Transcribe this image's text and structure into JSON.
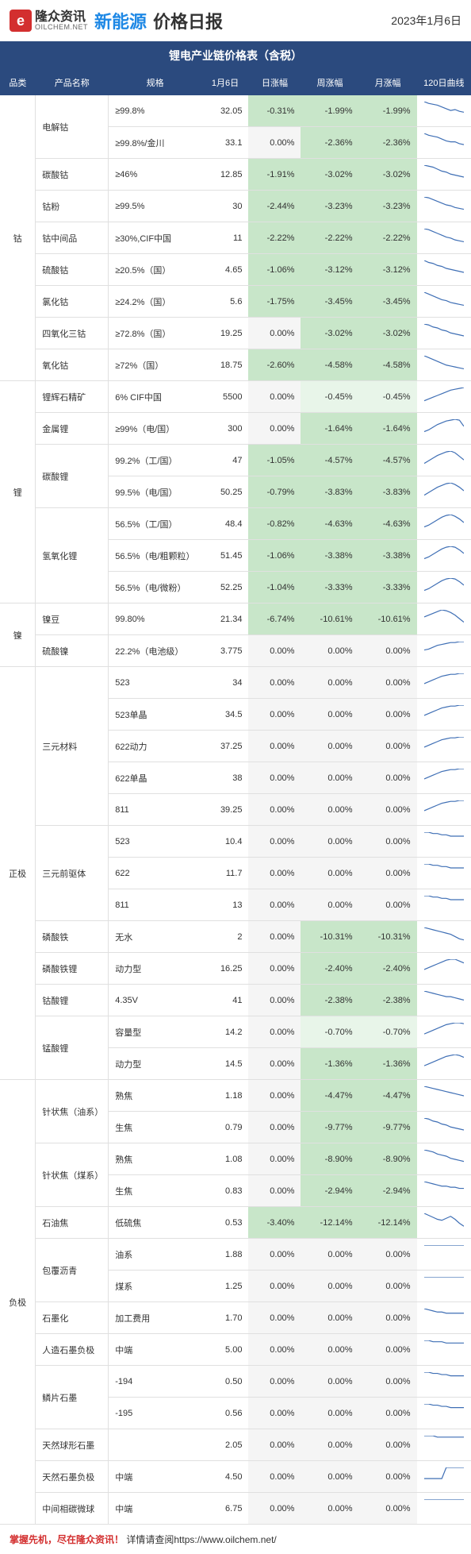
{
  "header": {
    "logo_cn": "隆众资讯",
    "logo_en": "OILCHEM.NET",
    "logo_letter": "e",
    "title_new": "新能源",
    "title_rest": "价格日报",
    "date": "2023年1月6日"
  },
  "table_title": "锂电产业链价格表（含税）",
  "columns": [
    "品类",
    "产品名称",
    "规格",
    "1月6日",
    "日涨幅",
    "周涨幅",
    "月涨幅",
    "120日曲线"
  ],
  "col_widths": [
    "38px",
    "78px",
    "100px",
    "50px",
    "56px",
    "62px",
    "62px",
    "56px"
  ],
  "colors": {
    "header_bg": "#2b4a7e",
    "green": "#c8e6c9",
    "green_light": "#e8f5e9",
    "gray": "#f5f5f5",
    "accent": "#d32f2f",
    "blue": "#1e88e5",
    "spark": "#3f6fb5"
  },
  "rows": [
    {
      "cat": "钴",
      "cat_span": 9,
      "pname": "电解钴",
      "pname_span": 2,
      "spec": "≥99.8%",
      "price": "32.05",
      "d": "-0.31%",
      "w": "-1.99%",
      "m": "-1.99%",
      "dcls": "green",
      "wcls": "green",
      "mcls": "green",
      "spark": [
        18,
        16,
        15,
        14,
        12,
        10,
        8,
        9,
        7,
        6
      ]
    },
    {
      "spec": "≥99.8%/金川",
      "price": "33.1",
      "d": "0.00%",
      "w": "-2.36%",
      "m": "-2.36%",
      "dcls": "gray",
      "wcls": "green",
      "mcls": "green",
      "spark": [
        17,
        15,
        14,
        13,
        11,
        9,
        8,
        8,
        6,
        5
      ]
    },
    {
      "pname": "碳酸钴",
      "spec": "≥46%",
      "price": "12.85",
      "d": "-1.91%",
      "w": "-3.02%",
      "m": "-3.02%",
      "dcls": "green",
      "wcls": "green",
      "mcls": "green",
      "spark": [
        16,
        15,
        14,
        12,
        10,
        9,
        7,
        6,
        5,
        4
      ]
    },
    {
      "pname": "钴粉",
      "spec": "≥99.5%",
      "price": "30",
      "d": "-2.44%",
      "w": "-3.23%",
      "m": "-3.23%",
      "dcls": "green",
      "wcls": "green",
      "mcls": "green",
      "spark": [
        18,
        17,
        15,
        13,
        11,
        9,
        8,
        6,
        5,
        4
      ]
    },
    {
      "pname": "钴中间品",
      "spec": "≥30%,CIF中国",
      "price": "11",
      "d": "-2.22%",
      "w": "-2.22%",
      "m": "-2.22%",
      "dcls": "green",
      "wcls": "green",
      "mcls": "green",
      "spark": [
        17,
        16,
        14,
        12,
        10,
        8,
        7,
        5,
        4,
        3
      ]
    },
    {
      "pname": "硫酸钴",
      "spec": "≥20.5%（国）",
      "price": "4.65",
      "d": "-1.06%",
      "w": "-3.12%",
      "m": "-3.12%",
      "dcls": "green",
      "wcls": "green",
      "mcls": "green",
      "spark": [
        16,
        14,
        13,
        11,
        10,
        8,
        7,
        6,
        5,
        4
      ]
    },
    {
      "pname": "氯化钴",
      "spec": "≥24.2%（国）",
      "price": "5.6",
      "d": "-1.75%",
      "w": "-3.45%",
      "m": "-3.45%",
      "dcls": "green",
      "wcls": "green",
      "mcls": "green",
      "spark": [
        17,
        15,
        13,
        11,
        9,
        8,
        6,
        5,
        4,
        3
      ]
    },
    {
      "pname": "四氧化三钴",
      "spec": "≥72.8%（国）",
      "price": "19.25",
      "d": "0.00%",
      "w": "-3.02%",
      "m": "-3.02%",
      "dcls": "gray",
      "wcls": "green",
      "mcls": "green",
      "spark": [
        16,
        15,
        13,
        12,
        10,
        9,
        7,
        6,
        5,
        4
      ]
    },
    {
      "pname": "氧化钴",
      "spec": "≥72%（国）",
      "price": "18.75",
      "d": "-2.60%",
      "w": "-4.58%",
      "m": "-4.58%",
      "dcls": "green",
      "wcls": "green",
      "mcls": "green",
      "spark": [
        17,
        15,
        13,
        11,
        9,
        7,
        6,
        5,
        4,
        3
      ]
    },
    {
      "cat": "锂",
      "cat_span": 7,
      "pname": "锂辉石精矿",
      "spec": "6% CIF中国",
      "price": "5500",
      "d": "0.00%",
      "w": "-0.45%",
      "m": "-0.45%",
      "dcls": "gray",
      "wcls": "green-light",
      "mcls": "green-light",
      "spark": [
        3,
        5,
        7,
        9,
        11,
        13,
        15,
        16,
        17,
        18
      ]
    },
    {
      "pname": "金属锂",
      "spec": "≥99%（电/国）",
      "price": "300",
      "d": "0.00%",
      "w": "-1.64%",
      "m": "-1.64%",
      "dcls": "gray",
      "wcls": "green",
      "mcls": "green",
      "spark": [
        4,
        6,
        9,
        12,
        14,
        16,
        17,
        18,
        17,
        10
      ]
    },
    {
      "pname": "碳酸锂",
      "pname_span": 2,
      "spec": "99.2%（工/国）",
      "price": "47",
      "d": "-1.05%",
      "w": "-4.57%",
      "m": "-4.57%",
      "dcls": "green",
      "wcls": "green",
      "mcls": "green",
      "spark": [
        4,
        7,
        10,
        13,
        15,
        17,
        18,
        16,
        12,
        8
      ]
    },
    {
      "spec": "99.5%（电/国）",
      "price": "50.25",
      "d": "-0.79%",
      "w": "-3.83%",
      "m": "-3.83%",
      "dcls": "green",
      "wcls": "green",
      "mcls": "green",
      "spark": [
        4,
        7,
        10,
        13,
        15,
        17,
        18,
        16,
        13,
        9
      ]
    },
    {
      "pname": "氢氧化锂",
      "pname_span": 3,
      "spec": "56.5%（工/国）",
      "price": "48.4",
      "d": "-0.82%",
      "w": "-4.63%",
      "m": "-4.63%",
      "dcls": "green",
      "wcls": "green",
      "mcls": "green",
      "spark": [
        4,
        6,
        9,
        12,
        15,
        17,
        18,
        16,
        13,
        9
      ]
    },
    {
      "spec": "56.5%（电/粗颗粒）",
      "price": "51.45",
      "d": "-1.06%",
      "w": "-3.38%",
      "m": "-3.38%",
      "dcls": "green",
      "wcls": "green",
      "mcls": "green",
      "spark": [
        4,
        6,
        9,
        12,
        15,
        17,
        18,
        17,
        14,
        10
      ]
    },
    {
      "spec": "56.5%（电/微粉）",
      "price": "52.25",
      "d": "-1.04%",
      "w": "-3.33%",
      "m": "-3.33%",
      "dcls": "green",
      "wcls": "green",
      "mcls": "green",
      "spark": [
        4,
        6,
        9,
        12,
        15,
        17,
        18,
        17,
        14,
        10
      ]
    },
    {
      "cat": "镍",
      "cat_span": 2,
      "pname": "镍豆",
      "spec": "99.80%",
      "price": "21.34",
      "d": "-6.74%",
      "w": "-10.61%",
      "m": "-10.61%",
      "dcls": "green",
      "wcls": "green",
      "mcls": "green",
      "spark": [
        10,
        12,
        14,
        16,
        18,
        17,
        15,
        12,
        8,
        4
      ]
    },
    {
      "pname": "硫酸镍",
      "spec": "22.2%（电池级）",
      "price": "3.775",
      "d": "0.00%",
      "w": "0.00%",
      "m": "0.00%",
      "dcls": "gray",
      "wcls": "gray",
      "mcls": "gray",
      "spark": [
        8,
        9,
        11,
        13,
        14,
        15,
        16,
        16,
        17,
        17
      ]
    },
    {
      "cat": "正极",
      "cat_span": 13,
      "pname": "三元材料",
      "pname_span": 5,
      "spec": "523",
      "price": "34",
      "d": "0.00%",
      "w": "0.00%",
      "m": "0.00%",
      "dcls": "gray",
      "wcls": "gray",
      "mcls": "gray",
      "spark": [
        6,
        8,
        10,
        12,
        14,
        15,
        16,
        16,
        17,
        17
      ]
    },
    {
      "spec": "523单晶",
      "price": "34.5",
      "d": "0.00%",
      "w": "0.00%",
      "m": "0.00%",
      "dcls": "gray",
      "wcls": "gray",
      "mcls": "gray",
      "spark": [
        6,
        8,
        10,
        12,
        14,
        15,
        16,
        16,
        17,
        17
      ]
    },
    {
      "spec": "622动力",
      "price": "37.25",
      "d": "0.00%",
      "w": "0.00%",
      "m": "0.00%",
      "dcls": "gray",
      "wcls": "gray",
      "mcls": "gray",
      "spark": [
        6,
        8,
        10,
        12,
        14,
        15,
        16,
        16,
        17,
        17
      ]
    },
    {
      "spec": "622单晶",
      "price": "38",
      "d": "0.00%",
      "w": "0.00%",
      "m": "0.00%",
      "dcls": "gray",
      "wcls": "gray",
      "mcls": "gray",
      "spark": [
        6,
        8,
        10,
        12,
        14,
        15,
        16,
        16,
        17,
        17
      ]
    },
    {
      "spec": "811",
      "price": "39.25",
      "d": "0.00%",
      "w": "0.00%",
      "m": "0.00%",
      "dcls": "gray",
      "wcls": "gray",
      "mcls": "gray",
      "spark": [
        6,
        8,
        10,
        12,
        14,
        15,
        16,
        16,
        17,
        17
      ]
    },
    {
      "pname": "三元前驱体",
      "pname_span": 3,
      "spec": "523",
      "price": "10.4",
      "d": "0.00%",
      "w": "0.00%",
      "m": "0.00%",
      "dcls": "gray",
      "wcls": "gray",
      "mcls": "gray",
      "spark": [
        12,
        12,
        11,
        11,
        10,
        10,
        9,
        9,
        9,
        9
      ]
    },
    {
      "spec": "622",
      "price": "11.7",
      "d": "0.00%",
      "w": "0.00%",
      "m": "0.00%",
      "dcls": "gray",
      "wcls": "gray",
      "mcls": "gray",
      "spark": [
        12,
        12,
        11,
        11,
        10,
        10,
        9,
        9,
        9,
        9
      ]
    },
    {
      "spec": "811",
      "price": "13",
      "d": "0.00%",
      "w": "0.00%",
      "m": "0.00%",
      "dcls": "gray",
      "wcls": "gray",
      "mcls": "gray",
      "spark": [
        12,
        12,
        11,
        11,
        10,
        10,
        9,
        9,
        9,
        9
      ]
    },
    {
      "pname": "磷酸铁",
      "spec": "无水",
      "price": "2",
      "d": "0.00%",
      "w": "-10.31%",
      "m": "-10.31%",
      "dcls": "gray",
      "wcls": "green",
      "mcls": "green",
      "spark": [
        14,
        13,
        12,
        11,
        10,
        9,
        8,
        6,
        4,
        3
      ]
    },
    {
      "pname": "磷酸铁锂",
      "spec": "动力型",
      "price": "16.25",
      "d": "0.00%",
      "w": "-2.40%",
      "m": "-2.40%",
      "dcls": "gray",
      "wcls": "green",
      "mcls": "green",
      "spark": [
        6,
        8,
        10,
        12,
        14,
        16,
        17,
        17,
        15,
        13
      ]
    },
    {
      "pname": "钴酸锂",
      "spec": "4.35V",
      "price": "41",
      "d": "0.00%",
      "w": "-2.38%",
      "m": "-2.38%",
      "dcls": "gray",
      "wcls": "green",
      "mcls": "green",
      "spark": [
        14,
        13,
        12,
        11,
        10,
        9,
        9,
        8,
        7,
        6
      ]
    },
    {
      "pname": "锰酸锂",
      "pname_span": 2,
      "spec": "容量型",
      "price": "14.2",
      "d": "0.00%",
      "w": "-0.70%",
      "m": "-0.70%",
      "dcls": "gray",
      "wcls": "green-light",
      "mcls": "green-light",
      "spark": [
        5,
        7,
        9,
        11,
        13,
        15,
        16,
        17,
        17,
        16
      ]
    },
    {
      "spec": "动力型",
      "price": "14.5",
      "d": "0.00%",
      "w": "-1.36%",
      "m": "-1.36%",
      "dcls": "gray",
      "wcls": "green",
      "mcls": "green",
      "spark": [
        5,
        7,
        9,
        11,
        13,
        15,
        16,
        17,
        16,
        14
      ]
    },
    {
      "cat": "负极",
      "cat_span": 14,
      "pname": "针状焦（油系）",
      "pname_span": 2,
      "spec": "熟焦",
      "price": "1.18",
      "d": "0.00%",
      "w": "-4.47%",
      "m": "-4.47%",
      "dcls": "gray",
      "wcls": "green",
      "mcls": "green",
      "spark": [
        15,
        14,
        13,
        12,
        11,
        10,
        9,
        8,
        7,
        6
      ]
    },
    {
      "spec": "生焦",
      "price": "0.79",
      "d": "0.00%",
      "w": "-9.77%",
      "m": "-9.77%",
      "dcls": "gray",
      "wcls": "green",
      "mcls": "green",
      "spark": [
        16,
        15,
        13,
        12,
        10,
        9,
        7,
        6,
        5,
        4
      ]
    },
    {
      "pname": "针状焦（煤系）",
      "pname_span": 2,
      "spec": "熟焦",
      "price": "1.08",
      "d": "0.00%",
      "w": "-8.90%",
      "m": "-8.90%",
      "dcls": "gray",
      "wcls": "green",
      "mcls": "green",
      "spark": [
        15,
        14,
        13,
        11,
        10,
        9,
        7,
        6,
        5,
        4
      ]
    },
    {
      "spec": "生焦",
      "price": "0.83",
      "d": "0.00%",
      "w": "-2.94%",
      "m": "-2.94%",
      "dcls": "gray",
      "wcls": "green",
      "mcls": "green",
      "spark": [
        14,
        13,
        12,
        11,
        10,
        10,
        9,
        9,
        8,
        8
      ]
    },
    {
      "pname": "石油焦",
      "spec": "低硫焦",
      "price": "0.53",
      "d": "-3.40%",
      "w": "-12.14%",
      "m": "-12.14%",
      "dcls": "green",
      "wcls": "green",
      "mcls": "green",
      "spark": [
        16,
        14,
        12,
        10,
        9,
        11,
        13,
        10,
        6,
        3
      ]
    },
    {
      "pname": "包覆沥青",
      "pname_span": 2,
      "spec": "油系",
      "price": "1.88",
      "d": "0.00%",
      "w": "0.00%",
      "m": "0.00%",
      "dcls": "gray",
      "wcls": "gray",
      "mcls": "gray",
      "spark": [
        10,
        10,
        10,
        10,
        10,
        10,
        10,
        10,
        10,
        10
      ]
    },
    {
      "spec": "煤系",
      "price": "1.25",
      "d": "0.00%",
      "w": "0.00%",
      "m": "0.00%",
      "dcls": "gray",
      "wcls": "gray",
      "mcls": "gray",
      "spark": [
        10,
        10,
        10,
        10,
        10,
        10,
        10,
        10,
        10,
        10
      ]
    },
    {
      "pname": "石墨化",
      "spec": "加工费用",
      "price": "1.70",
      "d": "0.00%",
      "w": "0.00%",
      "m": "0.00%",
      "dcls": "gray",
      "wcls": "gray",
      "mcls": "gray",
      "spark": [
        14,
        13,
        12,
        11,
        11,
        10,
        10,
        10,
        10,
        10
      ]
    },
    {
      "pname": "人造石墨负极",
      "spec": "中端",
      "price": "5.00",
      "d": "0.00%",
      "w": "0.00%",
      "m": "0.00%",
      "dcls": "gray",
      "wcls": "gray",
      "mcls": "gray",
      "spark": [
        12,
        12,
        11,
        11,
        11,
        10,
        10,
        10,
        10,
        10
      ]
    },
    {
      "pname": "鳞片石墨",
      "pname_span": 2,
      "spec": "-194",
      "price": "0.50",
      "d": "0.00%",
      "w": "0.00%",
      "m": "0.00%",
      "dcls": "gray",
      "wcls": "gray",
      "mcls": "gray",
      "spark": [
        13,
        13,
        12,
        12,
        11,
        11,
        10,
        10,
        10,
        10
      ]
    },
    {
      "spec": "-195",
      "price": "0.56",
      "d": "0.00%",
      "w": "0.00%",
      "m": "0.00%",
      "dcls": "gray",
      "wcls": "gray",
      "mcls": "gray",
      "spark": [
        13,
        13,
        12,
        12,
        11,
        11,
        10,
        10,
        10,
        10
      ]
    },
    {
      "pname": "天然球形石墨",
      "spec": "",
      "price": "2.05",
      "d": "0.00%",
      "w": "0.00%",
      "m": "0.00%",
      "dcls": "gray",
      "wcls": "gray",
      "mcls": "gray",
      "spark": [
        11,
        11,
        11,
        10,
        10,
        10,
        10,
        10,
        10,
        10
      ]
    },
    {
      "pname": "天然石墨负极",
      "spec": "中端",
      "price": "4.50",
      "d": "0.00%",
      "w": "0.00%",
      "m": "0.00%",
      "dcls": "gray",
      "wcls": "gray",
      "mcls": "gray",
      "spark": [
        3,
        3,
        3,
        3,
        3,
        10,
        10,
        10,
        10,
        10
      ]
    },
    {
      "pname": "中间相碳微球",
      "spec": "中端",
      "price": "6.75",
      "d": "0.00%",
      "w": "0.00%",
      "m": "0.00%",
      "dcls": "gray",
      "wcls": "gray",
      "mcls": "gray",
      "spark": [
        10,
        10,
        10,
        10,
        10,
        10,
        10,
        10,
        10,
        10
      ]
    }
  ],
  "footer": {
    "slogan": "掌握先机，尽在隆众资讯！",
    "rest": "详情请查阅https://www.oilchem.net/"
  }
}
